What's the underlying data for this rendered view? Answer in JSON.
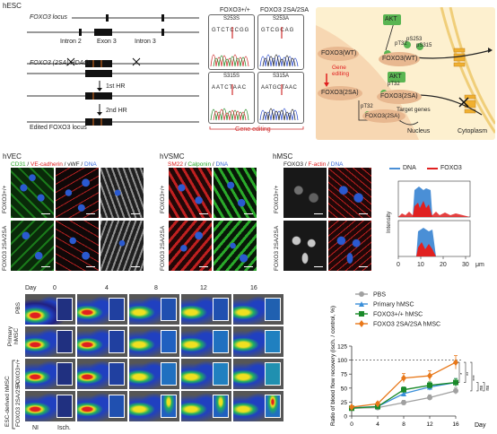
{
  "section_hesc": "hESC",
  "locus": {
    "locus_label": "FOXO3 locus",
    "intron2": "Intron 2",
    "exon3": "Exon 3",
    "intron3": "Intron 3",
    "hdadv_label": "FOXO3 (2SA) HDAdV",
    "hr1": "1st HR",
    "hr2": "2nd HR",
    "edited_label": "Edited FOXO3 locus"
  },
  "seq": {
    "col1_title": "FOXO3+/+",
    "col2_title": "FOXO3 2SA/2SA",
    "s253s": "S253S",
    "s253a": "S253A",
    "s315s": "S315S",
    "s315a": "S315A",
    "seq1": "GTCTCCGG",
    "seq2": "GTCGCAG",
    "seq3": "AATCTAAC",
    "seq4": "AATGCTAAC",
    "gene_editing": "Gene editing"
  },
  "schema": {
    "akt1": "AKT",
    "akt2": "AKT",
    "foxo_wt_left": "FOXO3(WT)",
    "foxo_wt_right": "FOXO3(WT)",
    "foxo_2sa_left": "FOXO3(2SA)",
    "foxo_2sa_right": "FOXO3(2SA)",
    "foxo_2sa_target": "FOXO3(2SA)",
    "pt32_a": "pT32",
    "ps253": "pS253",
    "ps315": "pS315",
    "pt32_b": "pT32",
    "pt32_c": "pT32",
    "gene_editing": "Gene editing",
    "target_genes": "Target genes",
    "nucleus": "Nucleus",
    "cytoplasm": "Cytoplasm"
  },
  "hvec": {
    "title": "hVEC",
    "stain_cd31": "CD31",
    "stain_sep1": " / ",
    "stain_vecad": "VE-cadherin",
    "stain_sep2": " / ",
    "stain_vwf": "vWF",
    "stain_sep3": " / ",
    "stain_dna": "DNA",
    "row1": "FOXO3+/+",
    "row2": "FOXO3 2SA/2SA"
  },
  "hvsmc": {
    "title": "hVSMC",
    "stain_sm22": "SM22",
    "stain_sep1": " / ",
    "stain_calponin": "Calponin",
    "stain_sep2": " / ",
    "stain_dna": "DNA",
    "row1": "FOXO3+/+",
    "row2": "FOXO3 2SA/2SA"
  },
  "hmsc": {
    "title": "hMSC",
    "stain_foxo3": "FOXO3",
    "stain_sep1": " / ",
    "stain_factin": "F-actin",
    "stain_sep2": " / ",
    "stain_dna": "DNA",
    "row1": "FOXO3+/+",
    "row2": "FOXO3 2SA/2SA"
  },
  "intensity": {
    "legend_dna": "DNA",
    "legend_foxo3": "FOXO3",
    "ylabel": "Intensity",
    "xticks": [
      "0",
      "10",
      "20",
      "30"
    ],
    "xunit": "μm",
    "dna_color": "#4a8fd6",
    "foxo3_color": "#e02020"
  },
  "laser": {
    "day_label": "Day",
    "days": [
      "0",
      "4",
      "8",
      "12",
      "16"
    ],
    "row_pbs": "PBS",
    "row_primary": "Primary hMSC",
    "row_foxo_wt": "FOXO3+/+",
    "row_foxo_2sa": "FOXO3 2SA/2SA",
    "group_esc": "ESC-derived hMSC",
    "ni": "NI",
    "isch": "Isch."
  },
  "chart_data": {
    "type": "line",
    "x": [
      0,
      4,
      8,
      12,
      16
    ],
    "xlabel": "Day",
    "ylabel": "Ratio of blood flow recovery (isch. / control, %)",
    "ylim": [
      0,
      125
    ],
    "yticks": [
      "0",
      "25",
      "50",
      "75",
      "100",
      "125"
    ],
    "xticks": [
      "0",
      "4",
      "8",
      "12",
      "16"
    ],
    "reference_line": 100,
    "legend_position": "top",
    "series": [
      {
        "name": "PBS",
        "color": "#a0a0a0",
        "marker": "circle",
        "values": [
          14,
          15,
          24,
          33,
          45
        ]
      },
      {
        "name": "Primary hMSC",
        "color": "#3a8fd9",
        "marker": "triangle",
        "values": [
          15,
          17,
          40,
          52,
          60
        ]
      },
      {
        "name": "FOXO3+/+ hMSC",
        "color": "#1a8a2a",
        "marker": "square",
        "values": [
          14,
          17,
          47,
          55,
          60
        ]
      },
      {
        "name": "FOXO3 2SA/2SA hMSC",
        "color": "#e8781a",
        "marker": "diamond",
        "values": [
          16,
          22,
          68,
          72,
          96
        ]
      }
    ],
    "errors": [
      [
        2,
        2,
        4,
        5,
        6
      ],
      [
        2,
        3,
        5,
        6,
        7
      ],
      [
        2,
        3,
        5,
        6,
        7
      ],
      [
        2,
        3,
        8,
        9,
        12
      ]
    ],
    "significance": [
      "*",
      "**",
      "***",
      "ns",
      "ns"
    ]
  }
}
